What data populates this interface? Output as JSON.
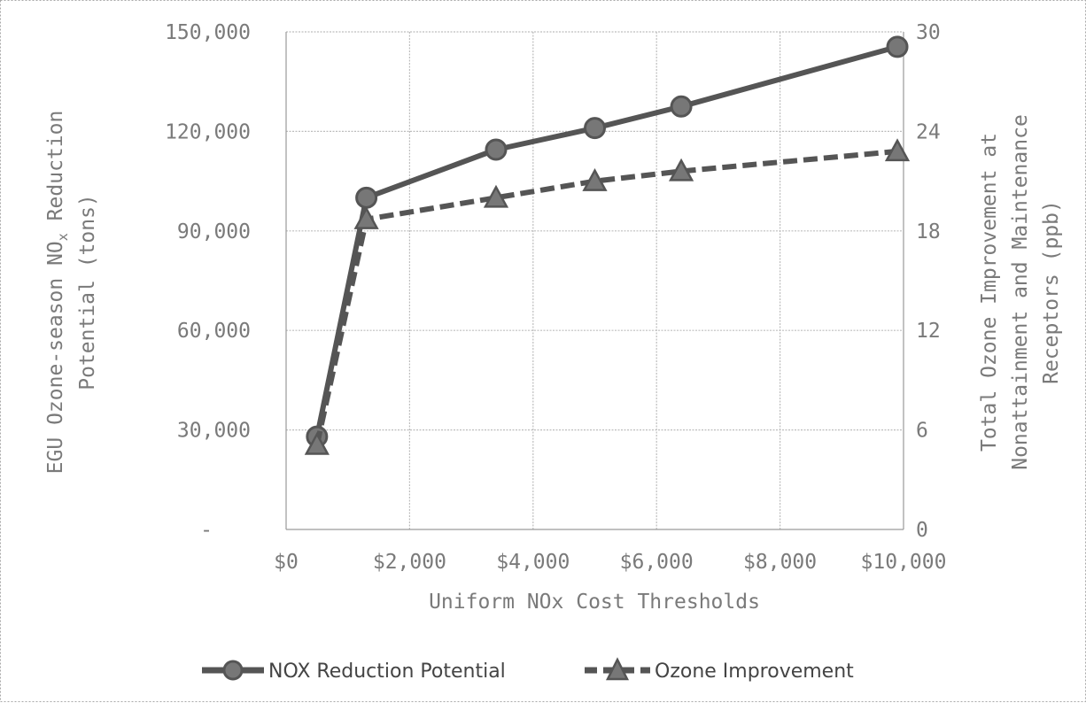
{
  "chart_data": {
    "type": "line",
    "title": "",
    "xlabel": "Uniform NOx Cost Thresholds",
    "ylabel_left": {
      "line1": "EGU Ozone-season NO",
      "subscript": "x",
      "after_subscript": " Reduction",
      "line2": "Potential (tons)"
    },
    "ylabel_right": {
      "line1": "Total Ozone Improvement at",
      "line2": "Nonattainment and Maintenance",
      "line3": "Receptors (ppb)"
    },
    "xlim": [
      0,
      10000
    ],
    "ylim_left": [
      0,
      150000
    ],
    "ylim_right": [
      0,
      30
    ],
    "x_ticks": [
      {
        "value": 0,
        "label": "$0"
      },
      {
        "value": 2000,
        "label": "$2,000"
      },
      {
        "value": 4000,
        "label": "$4,000"
      },
      {
        "value": 6000,
        "label": "$6,000"
      },
      {
        "value": 8000,
        "label": "$8,000"
      },
      {
        "value": 10000,
        "label": "$10,000"
      }
    ],
    "y_left_ticks": [
      {
        "value": 0,
        "label": "-"
      },
      {
        "value": 30000,
        "label": "30,000"
      },
      {
        "value": 60000,
        "label": "60,000"
      },
      {
        "value": 90000,
        "label": "90,000"
      },
      {
        "value": 120000,
        "label": "120,000"
      },
      {
        "value": 150000,
        "label": "150,000"
      }
    ],
    "y_right_ticks": [
      {
        "value": 0,
        "label": "0"
      },
      {
        "value": 6,
        "label": "6"
      },
      {
        "value": 12,
        "label": "12"
      },
      {
        "value": 18,
        "label": "18"
      },
      {
        "value": 24,
        "label": "24"
      },
      {
        "value": 30,
        "label": "30"
      }
    ],
    "grid": true,
    "legend_position": "bottom",
    "series": [
      {
        "name": "NOX Reduction Potential",
        "axis": "left",
        "marker": "circle",
        "line_style": "solid",
        "color": "#555555",
        "x": [
          500,
          1300,
          3400,
          5000,
          6400,
          9900
        ],
        "values": [
          28000,
          100000,
          114500,
          121000,
          127500,
          145500
        ]
      },
      {
        "name": "Ozone Improvement",
        "axis": "right",
        "marker": "triangle",
        "line_style": "dashed",
        "color": "#555555",
        "x": [
          500,
          1300,
          3400,
          5000,
          6400,
          9900
        ],
        "values": [
          5.1,
          18.7,
          20,
          21,
          21.6,
          22.8
        ]
      }
    ]
  }
}
